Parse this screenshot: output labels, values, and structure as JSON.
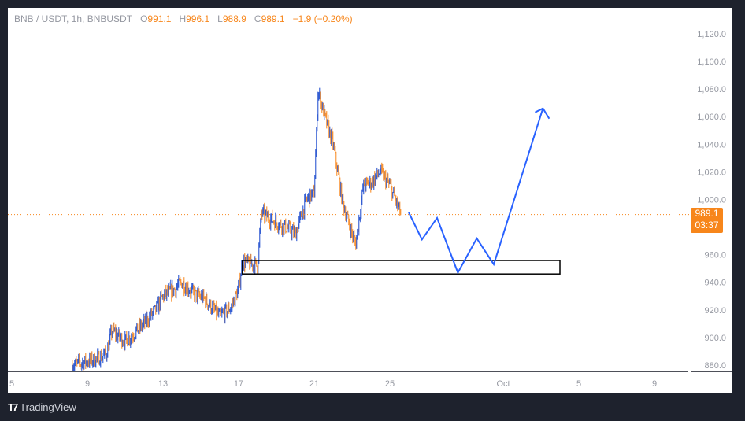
{
  "legend": {
    "symbol": "BNB / USDT, 1h, BNBUSDT",
    "open_label": "O",
    "open": "991.1",
    "high_label": "H",
    "high": "996.1",
    "low_label": "L",
    "low": "988.9",
    "close_label": "C",
    "close": "989.1",
    "change": "−1.9 (−0.20%)"
  },
  "price_tag": {
    "price": "989.1",
    "countdown": "03:37"
  },
  "brand": "TradingView",
  "colors": {
    "up": "#1848cc",
    "down": "#f7861b",
    "projection": "#2962ff",
    "tag": "#f7861b"
  },
  "chart_data": {
    "type": "candlestick",
    "title": "BNB / USDT, 1h, BNBUSDT",
    "ylim": [
      875,
      1125
    ],
    "y_ticks": [
      "1,120.0",
      "1,100.0",
      "1,080.0",
      "1,060.0",
      "1,040.0",
      "1,020.0",
      "1,000.0",
      "960.0",
      "940.0",
      "920.0",
      "900.0",
      "880.0"
    ],
    "y_tick_values": [
      1120,
      1100,
      1080,
      1060,
      1040,
      1020,
      1000,
      960,
      940,
      920,
      900,
      880
    ],
    "x_ticks": [
      "5",
      "9",
      "13",
      "17",
      "21",
      "25",
      "Oct",
      "5",
      "9"
    ],
    "x_tick_days": [
      5,
      9,
      13,
      17,
      21,
      25,
      31,
      35,
      39
    ],
    "xlim": [
      4.85,
      40.2
    ],
    "price_path_days": [
      8.2,
      9.4,
      10,
      10.3,
      11,
      12,
      12.6,
      13,
      13.6,
      14,
      14.6,
      15.2,
      16,
      16.6,
      17,
      17.2,
      18,
      18.2,
      18.8,
      19.5,
      20,
      20.6,
      21,
      21.2,
      21.6,
      22,
      22.5,
      23,
      23.2,
      23.6,
      24,
      24.5,
      25,
      25.6
    ],
    "price_path_values": [
      880,
      884,
      888,
      905,
      897,
      910,
      920,
      930,
      935,
      940,
      932,
      928,
      915,
      922,
      935,
      955,
      952,
      990,
      985,
      980,
      975,
      1000,
      1005,
      1078,
      1058,
      1040,
      998,
      975,
      968,
      1010,
      1012,
      1020,
      1010,
      989
    ],
    "current_price": 989.1,
    "projection": {
      "days": [
        26.0,
        26.7,
        27.5,
        28.6,
        29.6,
        30.5,
        33.1
      ],
      "prices": [
        990.6,
        971,
        986.6,
        947,
        971.8,
        953,
        1066
      ]
    },
    "zone": {
      "day_start": 17.2,
      "day_end": 34.0,
      "price_top": 955.8,
      "price_bottom": 946
    }
  }
}
